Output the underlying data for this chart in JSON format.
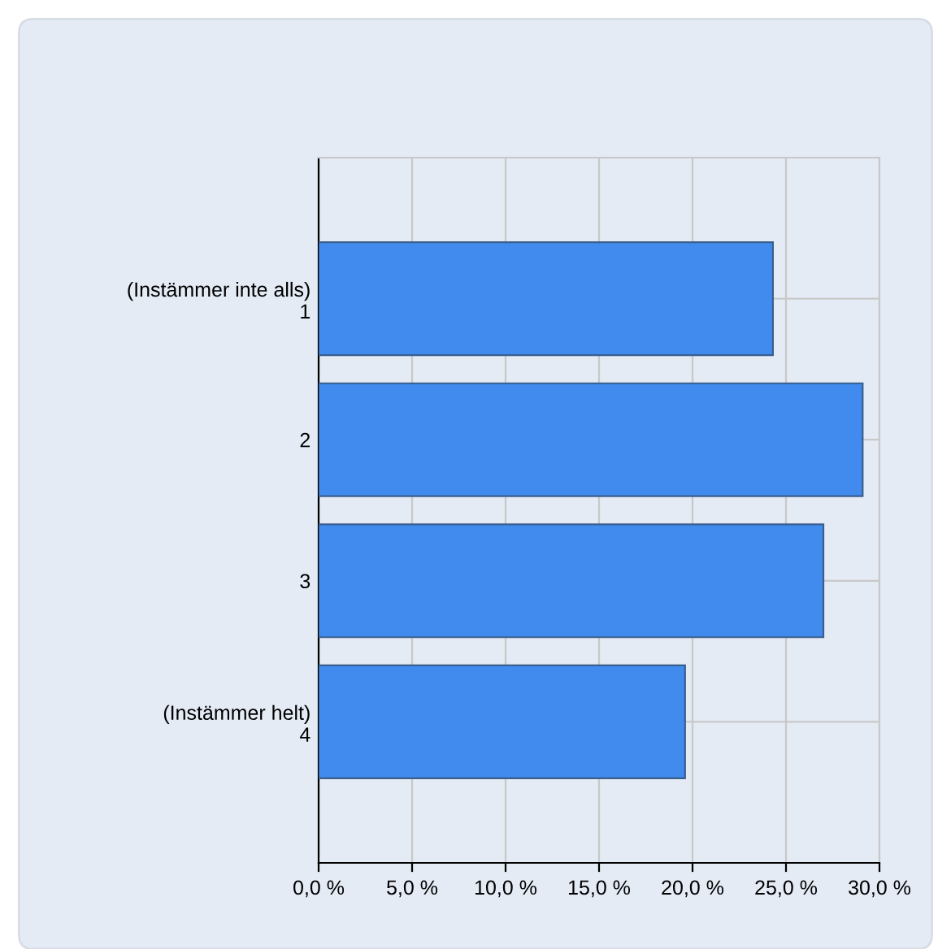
{
  "chart_data": {
    "type": "bar",
    "orientation": "horizontal",
    "categories": [
      "(Instämmer inte alls)\n1",
      "2",
      "3",
      "(Instämmer helt)\n4"
    ],
    "values": [
      24.3,
      29.1,
      27.0,
      19.6
    ],
    "color": "#418bee",
    "xlim": [
      0,
      30
    ],
    "xticks": [
      {
        "value": 0,
        "label": "0,0 %"
      },
      {
        "value": 5,
        "label": "5,0 %"
      },
      {
        "value": 10,
        "label": "10,0 %"
      },
      {
        "value": 15,
        "label": "15,0 %"
      },
      {
        "value": 20,
        "label": "20,0 %"
      },
      {
        "value": 25,
        "label": "25,0 %"
      },
      {
        "value": 30,
        "label": "30,0 %"
      }
    ],
    "grid": true,
    "legend": false
  }
}
